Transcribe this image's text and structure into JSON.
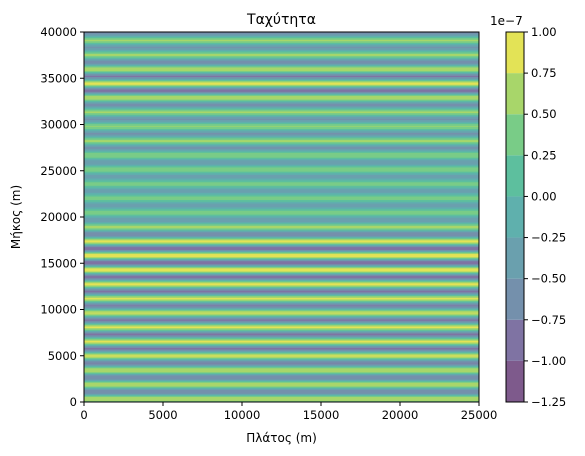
{
  "chart_data": {
    "type": "heatmap",
    "plot_style": "filled-contour",
    "title": "Ταχύτητα",
    "xlabel": "Πλάτος (m)",
    "ylabel": "Μήκος (m)",
    "xlim": [
      0,
      25000
    ],
    "ylim": [
      0,
      40000
    ],
    "x_ticks": [
      0,
      5000,
      10000,
      15000,
      20000,
      25000
    ],
    "y_ticks": [
      0,
      5000,
      10000,
      15000,
      20000,
      25000,
      30000,
      35000,
      40000
    ],
    "grid": false,
    "colormap": "viridis",
    "alpha": 0.7,
    "colorbar": {
      "multiplier_label": "1e−7",
      "levels": [
        -1.25,
        -1.0,
        -0.75,
        -0.5,
        -0.25,
        0.0,
        0.25,
        0.5,
        0.75,
        1.0
      ],
      "tick_labels": [
        "−1.25",
        "−1.00",
        "−0.75",
        "−0.50",
        "−0.25",
        "0.00",
        "0.25",
        "0.50",
        "0.75",
        "1.00"
      ],
      "colors": [
        "#7e5a8c",
        "#7f73a3",
        "#7490ac",
        "#6aa0ae",
        "#5fb0ad",
        "#5dbf9e",
        "#79cc87",
        "#a8d66a",
        "#e3e356"
      ]
    },
    "field": {
      "orientation": "horizontal-bands",
      "description_values": "velocity varies along y only, constant along x",
      "y_stations": [
        0,
        2000,
        4000,
        6000,
        8000,
        10000,
        12000,
        14000,
        16000,
        18000,
        20000,
        22000,
        24000,
        26000,
        28000,
        30000,
        32000,
        34000,
        36000,
        38000,
        40000
      ],
      "envelope": [
        0.75,
        0.75,
        0.75,
        0.8,
        0.8,
        0.75,
        0.8,
        0.9,
        1.0,
        0.75,
        0.4,
        0.35,
        0.35,
        0.45,
        0.55,
        0.5,
        0.55,
        0.9,
        0.7,
        0.5,
        0.55
      ],
      "wavelength": 1550,
      "units_scale": 1e-07
    }
  }
}
